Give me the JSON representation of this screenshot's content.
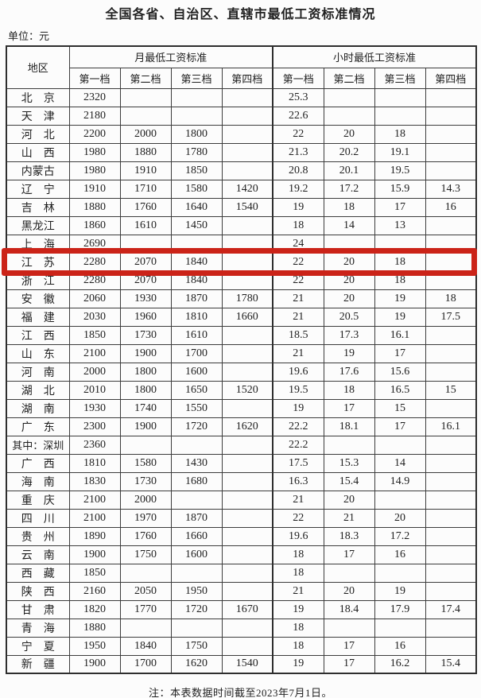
{
  "page": {
    "title": "全国各省、自治区、直辖市最低工资标准情况",
    "unit_label": "单位：元",
    "footnote": "注：本表数据时间截至2023年7月1日。"
  },
  "table": {
    "region_header": "地区",
    "monthly_header": "月最低工资标准",
    "hourly_header": "小时最低工资标准",
    "tier_headers": [
      "第一档",
      "第二档",
      "第三档",
      "第四档"
    ],
    "highlight_color": "#cb2318",
    "highlighted_region": "江苏",
    "rows": [
      {
        "region": "北　京",
        "monthly": [
          "2320",
          "",
          "",
          ""
        ],
        "hourly": [
          "25.3",
          "",
          "",
          ""
        ]
      },
      {
        "region": "天　津",
        "monthly": [
          "2180",
          "",
          "",
          ""
        ],
        "hourly": [
          "22.6",
          "",
          "",
          ""
        ]
      },
      {
        "region": "河　北",
        "monthly": [
          "2200",
          "2000",
          "1800",
          ""
        ],
        "hourly": [
          "22",
          "20",
          "18",
          ""
        ]
      },
      {
        "region": "山　西",
        "monthly": [
          "1980",
          "1880",
          "1780",
          ""
        ],
        "hourly": [
          "21.3",
          "20.2",
          "19.1",
          ""
        ]
      },
      {
        "region": "内蒙古",
        "monthly": [
          "1980",
          "1910",
          "1850",
          ""
        ],
        "hourly": [
          "20.8",
          "20.1",
          "19.5",
          ""
        ]
      },
      {
        "region": "辽　宁",
        "monthly": [
          "1910",
          "1710",
          "1580",
          "1420"
        ],
        "hourly": [
          "19.2",
          "17.2",
          "15.9",
          "14.3"
        ]
      },
      {
        "region": "吉　林",
        "monthly": [
          "1880",
          "1760",
          "1640",
          "1540"
        ],
        "hourly": [
          "19",
          "18",
          "17",
          "16"
        ]
      },
      {
        "region": "黑龙江",
        "monthly": [
          "1860",
          "1610",
          "1450",
          ""
        ],
        "hourly": [
          "18",
          "14",
          "13",
          ""
        ]
      },
      {
        "region": "上　海",
        "monthly": [
          "2690",
          "",
          "",
          ""
        ],
        "hourly": [
          "24",
          "",
          "",
          ""
        ]
      },
      {
        "region": "江　苏",
        "monthly": [
          "2280",
          "2070",
          "1840",
          ""
        ],
        "hourly": [
          "22",
          "20",
          "18",
          ""
        ],
        "highlighted": true
      },
      {
        "region": "浙　江",
        "monthly": [
          "2280",
          "2070",
          "1840",
          ""
        ],
        "hourly": [
          "22",
          "20",
          "18",
          ""
        ]
      },
      {
        "region": "安　徽",
        "monthly": [
          "2060",
          "1930",
          "1870",
          "1780"
        ],
        "hourly": [
          "21",
          "20",
          "19",
          "18"
        ]
      },
      {
        "region": "福　建",
        "monthly": [
          "2030",
          "1960",
          "1810",
          "1660"
        ],
        "hourly": [
          "21",
          "20.5",
          "19",
          "17.5"
        ]
      },
      {
        "region": "江　西",
        "monthly": [
          "1850",
          "1730",
          "1610",
          ""
        ],
        "hourly": [
          "18.5",
          "17.3",
          "16.1",
          ""
        ]
      },
      {
        "region": "山　东",
        "monthly": [
          "2100",
          "1900",
          "1700",
          ""
        ],
        "hourly": [
          "21",
          "19",
          "17",
          ""
        ]
      },
      {
        "region": "河　南",
        "monthly": [
          "2000",
          "1800",
          "1600",
          ""
        ],
        "hourly": [
          "19.6",
          "17.6",
          "15.6",
          ""
        ]
      },
      {
        "region": "湖　北",
        "monthly": [
          "2010",
          "1800",
          "1650",
          "1520"
        ],
        "hourly": [
          "19.5",
          "18",
          "16.5",
          "15"
        ]
      },
      {
        "region": "湖　南",
        "monthly": [
          "1930",
          "1740",
          "1550",
          ""
        ],
        "hourly": [
          "19",
          "17",
          "15",
          ""
        ]
      },
      {
        "region": "广　东",
        "monthly": [
          "2300",
          "1900",
          "1720",
          "1620"
        ],
        "hourly": [
          "22.2",
          "18.1",
          "17",
          "16.1"
        ]
      },
      {
        "region": "其中：深圳",
        "monthly": [
          "2360",
          "",
          "",
          ""
        ],
        "hourly": [
          "22.2",
          "",
          "",
          ""
        ],
        "small": true
      },
      {
        "region": "广　西",
        "monthly": [
          "1810",
          "1580",
          "1430",
          ""
        ],
        "hourly": [
          "17.5",
          "15.3",
          "14",
          ""
        ]
      },
      {
        "region": "海　南",
        "monthly": [
          "1830",
          "1730",
          "1680",
          ""
        ],
        "hourly": [
          "16.3",
          "15.4",
          "14.9",
          ""
        ]
      },
      {
        "region": "重　庆",
        "monthly": [
          "2100",
          "2000",
          "",
          ""
        ],
        "hourly": [
          "21",
          "20",
          "",
          ""
        ]
      },
      {
        "region": "四　川",
        "monthly": [
          "2100",
          "1970",
          "1870",
          ""
        ],
        "hourly": [
          "22",
          "21",
          "20",
          ""
        ]
      },
      {
        "region": "贵　州",
        "monthly": [
          "1890",
          "1760",
          "1660",
          ""
        ],
        "hourly": [
          "19.6",
          "18.3",
          "17.2",
          ""
        ]
      },
      {
        "region": "云　南",
        "monthly": [
          "1900",
          "1750",
          "1600",
          ""
        ],
        "hourly": [
          "18",
          "17",
          "16",
          ""
        ]
      },
      {
        "region": "西　藏",
        "monthly": [
          "1850",
          "",
          "",
          ""
        ],
        "hourly": [
          "18",
          "",
          "",
          ""
        ]
      },
      {
        "region": "陕　西",
        "monthly": [
          "2160",
          "2050",
          "1950",
          ""
        ],
        "hourly": [
          "21",
          "20",
          "19",
          ""
        ]
      },
      {
        "region": "甘　肃",
        "monthly": [
          "1820",
          "1770",
          "1720",
          "1670"
        ],
        "hourly": [
          "19",
          "18.4",
          "17.9",
          "17.4"
        ]
      },
      {
        "region": "青　海",
        "monthly": [
          "1880",
          "",
          "",
          ""
        ],
        "hourly": [
          "18",
          "",
          "",
          ""
        ]
      },
      {
        "region": "宁　夏",
        "monthly": [
          "1950",
          "1840",
          "1750",
          ""
        ],
        "hourly": [
          "18",
          "17",
          "16",
          ""
        ]
      },
      {
        "region": "新　疆",
        "monthly": [
          "1900",
          "1700",
          "1620",
          "1540"
        ],
        "hourly": [
          "19",
          "17",
          "16.2",
          "15.4"
        ]
      }
    ]
  }
}
